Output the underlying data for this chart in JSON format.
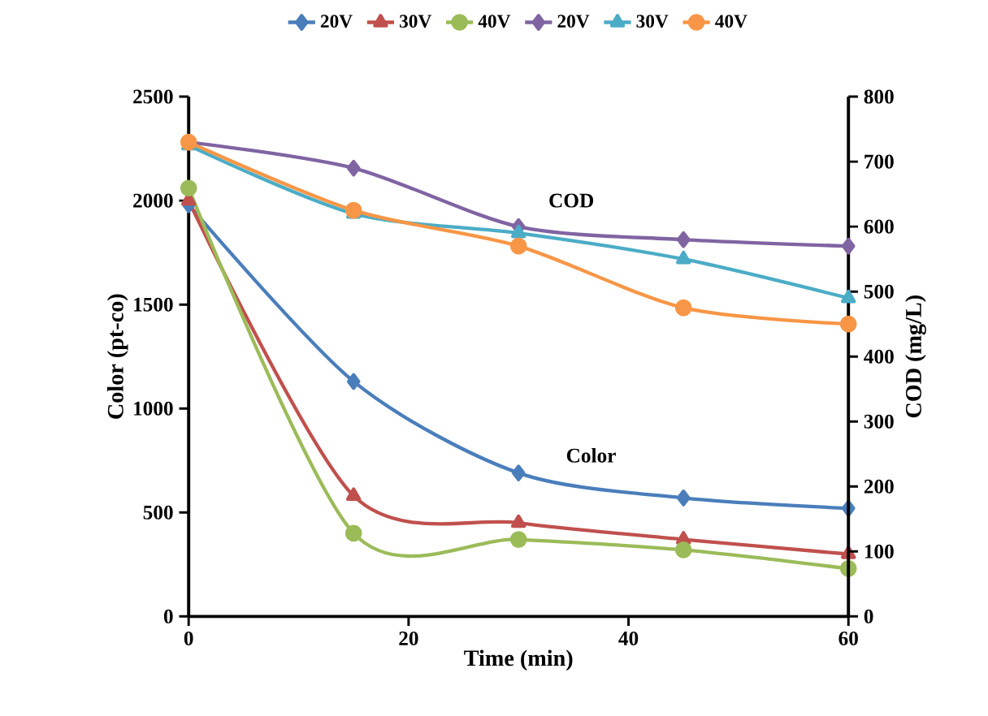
{
  "chart_data": {
    "type": "line",
    "xlabel": "Time (min)",
    "ylabel": "Color  (pt-co)",
    "y2label": "COD (mg/L)",
    "x": [
      0,
      15,
      30,
      45,
      60
    ],
    "xlim": [
      0,
      60
    ],
    "xticks": [
      0,
      20,
      40,
      60
    ],
    "ylim": [
      0,
      2500
    ],
    "yticks": [
      0,
      500,
      1000,
      1500,
      2000,
      2500
    ],
    "y2lim": [
      0,
      800
    ],
    "y2ticks": [
      0,
      100,
      200,
      300,
      400,
      500,
      600,
      700,
      800
    ],
    "legend": "top",
    "line_style": "solid",
    "series": [
      {
        "name": "20V",
        "color": "#4a7ebb",
        "marker": "diamond",
        "values": [
          1980,
          1130,
          690,
          570,
          520
        ]
      },
      {
        "name": "30V",
        "color": "#c0504d",
        "marker": "triangle",
        "values": [
          2000,
          580,
          450,
          370,
          300
        ]
      },
      {
        "name": "40V",
        "color": "#9bbb59",
        "marker": "circle",
        "values": [
          2060,
          400,
          370,
          320,
          230
        ]
      },
      {
        "name": "20V",
        "color": "#8064a2",
        "marker": "diamond",
        "axis": "y2",
        "values": [
          730,
          690,
          600,
          580,
          570
        ]
      },
      {
        "name": "30V",
        "color": "#4bacc6",
        "marker": "triangle",
        "axis": "y2",
        "values": [
          725,
          620,
          590,
          550,
          490
        ]
      },
      {
        "name": "40V",
        "color": "#f79646",
        "marker": "circle",
        "axis": "y2",
        "values": [
          730,
          625,
          570,
          475,
          450
        ]
      }
    ],
    "annotations": [
      "COD",
      "Color"
    ]
  }
}
